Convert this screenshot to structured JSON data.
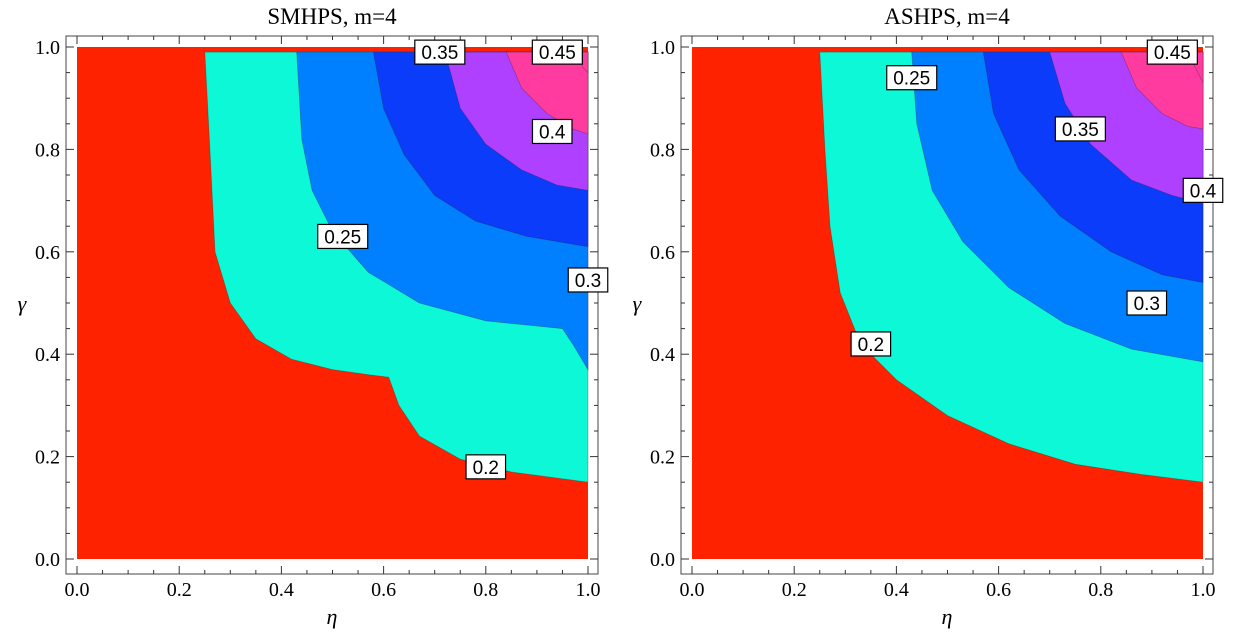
{
  "chart_data": [
    {
      "type": "contour",
      "title": "SMHPS, m=4",
      "xlabel": "η",
      "ylabel": "γ",
      "xlim": [
        0,
        1
      ],
      "ylim": [
        0,
        1
      ],
      "xticks": [
        "0.0",
        "0.2",
        "0.4",
        "0.6",
        "0.8",
        "1.0"
      ],
      "yticks": [
        "0.0",
        "0.2",
        "0.4",
        "0.6",
        "0.8",
        "1.0"
      ],
      "levels": [
        {
          "label": "0.2",
          "color": "#ff2200"
        },
        {
          "label": "0.25",
          "color": "#0df8d6"
        },
        {
          "label": "0.3",
          "color": "#0080ff"
        },
        {
          "label": "0.35",
          "color": "#0a3cfa"
        },
        {
          "label": "0.4",
          "color": "#b040ff"
        },
        {
          "label": "0.45",
          "color": "#ff3ba0"
        }
      ],
      "contours": [
        {
          "level": "0.2",
          "points": [
            [
              0.25,
              0.99
            ],
            [
              0.26,
              0.8
            ],
            [
              0.27,
              0.6
            ],
            [
              0.3,
              0.5
            ],
            [
              0.35,
              0.43
            ],
            [
              0.42,
              0.39
            ],
            [
              0.5,
              0.37
            ],
            [
              0.57,
              0.36
            ],
            [
              0.61,
              0.355
            ],
            [
              0.63,
              0.3
            ],
            [
              0.67,
              0.24
            ],
            [
              0.75,
              0.195
            ],
            [
              0.85,
              0.17
            ],
            [
              1.0,
              0.15
            ]
          ]
        },
        {
          "level": "0.25",
          "points": [
            [
              0.43,
              0.99
            ],
            [
              0.44,
              0.82
            ],
            [
              0.46,
              0.72
            ],
            [
              0.5,
              0.64
            ],
            [
              0.57,
              0.56
            ],
            [
              0.67,
              0.5
            ],
            [
              0.8,
              0.465
            ],
            [
              0.95,
              0.45
            ],
            [
              0.97,
              0.42
            ],
            [
              1.0,
              0.37
            ]
          ]
        },
        {
          "level": "0.3",
          "points": [
            [
              0.58,
              0.99
            ],
            [
              0.6,
              0.88
            ],
            [
              0.64,
              0.79
            ],
            [
              0.7,
              0.71
            ],
            [
              0.78,
              0.66
            ],
            [
              0.88,
              0.63
            ],
            [
              1.0,
              0.61
            ]
          ]
        },
        {
          "level": "0.35",
          "points": [
            [
              0.72,
              0.99
            ],
            [
              0.75,
              0.88
            ],
            [
              0.8,
              0.81
            ],
            [
              0.87,
              0.76
            ],
            [
              0.94,
              0.73
            ],
            [
              1.0,
              0.72
            ]
          ]
        },
        {
          "level": "0.4",
          "points": [
            [
              0.84,
              0.99
            ],
            [
              0.87,
              0.92
            ],
            [
              0.92,
              0.87
            ],
            [
              0.97,
              0.84
            ],
            [
              1.0,
              0.83
            ]
          ]
        },
        {
          "level": "0.45",
          "points": [
            [
              0.98,
              0.99
            ],
            [
              0.99,
              0.96
            ],
            [
              1.0,
              0.95
            ]
          ]
        }
      ],
      "labels": [
        {
          "text": "0.2",
          "x": 0.8,
          "y": 0.18
        },
        {
          "text": "0.25",
          "x": 0.52,
          "y": 0.63
        },
        {
          "text": "0.3",
          "x": 1.0,
          "y": 0.545
        },
        {
          "text": "0.35",
          "x": 0.71,
          "y": 0.99
        },
        {
          "text": "0.4",
          "x": 0.93,
          "y": 0.835
        },
        {
          "text": "0.45",
          "x": 0.94,
          "y": 0.99
        }
      ]
    },
    {
      "type": "contour",
      "title": "ASHPS, m=4",
      "xlabel": "η",
      "ylabel": "γ",
      "xlim": [
        0,
        1
      ],
      "ylim": [
        0,
        1
      ],
      "xticks": [
        "0.0",
        "0.2",
        "0.4",
        "0.6",
        "0.8",
        "1.0"
      ],
      "yticks": [
        "0.0",
        "0.2",
        "0.4",
        "0.6",
        "0.8",
        "1.0"
      ],
      "levels": [
        {
          "label": "0.2",
          "color": "#ff2200"
        },
        {
          "label": "0.25",
          "color": "#0df8d6"
        },
        {
          "label": "0.3",
          "color": "#0080ff"
        },
        {
          "label": "0.35",
          "color": "#0a3cfa"
        },
        {
          "label": "0.4",
          "color": "#b040ff"
        },
        {
          "label": "0.45",
          "color": "#ff3ba0"
        }
      ],
      "contours": [
        {
          "level": "0.2",
          "points": [
            [
              0.25,
              0.99
            ],
            [
              0.26,
              0.8
            ],
            [
              0.27,
              0.65
            ],
            [
              0.29,
              0.52
            ],
            [
              0.33,
              0.42
            ],
            [
              0.4,
              0.35
            ],
            [
              0.5,
              0.28
            ],
            [
              0.62,
              0.225
            ],
            [
              0.75,
              0.185
            ],
            [
              0.88,
              0.165
            ],
            [
              1.0,
              0.15
            ]
          ]
        },
        {
          "level": "0.25",
          "points": [
            [
              0.43,
              0.99
            ],
            [
              0.44,
              0.85
            ],
            [
              0.47,
              0.72
            ],
            [
              0.53,
              0.62
            ],
            [
              0.62,
              0.53
            ],
            [
              0.73,
              0.46
            ],
            [
              0.86,
              0.41
            ],
            [
              1.0,
              0.385
            ]
          ]
        },
        {
          "level": "0.3",
          "points": [
            [
              0.57,
              0.99
            ],
            [
              0.59,
              0.87
            ],
            [
              0.64,
              0.76
            ],
            [
              0.72,
              0.67
            ],
            [
              0.82,
              0.6
            ],
            [
              0.92,
              0.555
            ],
            [
              1.0,
              0.54
            ]
          ]
        },
        {
          "level": "0.35",
          "points": [
            [
              0.7,
              0.99
            ],
            [
              0.73,
              0.89
            ],
            [
              0.78,
              0.81
            ],
            [
              0.86,
              0.74
            ],
            [
              0.94,
              0.71
            ],
            [
              1.0,
              0.695
            ]
          ]
        },
        {
          "level": "0.4",
          "points": [
            [
              0.84,
              0.99
            ],
            [
              0.87,
              0.92
            ],
            [
              0.92,
              0.87
            ],
            [
              0.97,
              0.845
            ],
            [
              1.0,
              0.84
            ]
          ]
        },
        {
          "level": "0.45",
          "points": [
            [
              0.97,
              0.99
            ],
            [
              0.99,
              0.95
            ],
            [
              1.0,
              0.93
            ]
          ]
        }
      ],
      "labels": [
        {
          "text": "0.2",
          "x": 0.35,
          "y": 0.42
        },
        {
          "text": "0.25",
          "x": 0.43,
          "y": 0.94
        },
        {
          "text": "0.3",
          "x": 0.89,
          "y": 0.5
        },
        {
          "text": "0.35",
          "x": 0.76,
          "y": 0.84
        },
        {
          "text": "0.4",
          "x": 1.0,
          "y": 0.72
        },
        {
          "text": "0.45",
          "x": 0.94,
          "y": 0.99
        }
      ]
    }
  ]
}
